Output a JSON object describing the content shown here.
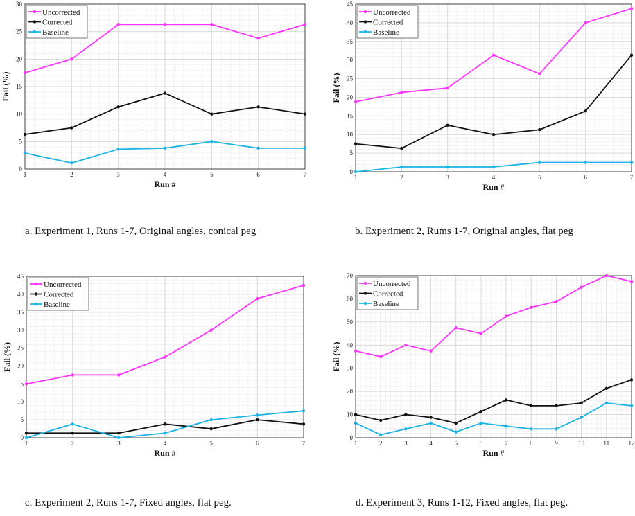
{
  "colors": {
    "Uncorrected": "#ff33ff",
    "Corrected": "#111111",
    "Baseline": "#1ab3e6"
  },
  "chart_data": [
    {
      "type": "line",
      "caption": "a.  Experiment 1, Runs 1-7, Original angles, conical peg",
      "xlabel": "Run #",
      "ylabel": "Fail  (%)",
      "x": [
        1,
        2,
        3,
        4,
        5,
        6,
        7
      ],
      "xlim": [
        1,
        7
      ],
      "ylim": [
        0,
        30
      ],
      "yticks": [
        0,
        5,
        10,
        15,
        20,
        25,
        30
      ],
      "grid": true,
      "legend": "top-left",
      "series": [
        {
          "name": "Uncorrected",
          "values": [
            17.5,
            20,
            26.3,
            26.3,
            26.3,
            23.8,
            26.3
          ]
        },
        {
          "name": "Corrected",
          "values": [
            6.3,
            7.5,
            11.3,
            13.8,
            10,
            11.3,
            10
          ]
        },
        {
          "name": "Baseline",
          "values": [
            2.9,
            1.1,
            3.6,
            3.8,
            5,
            3.8,
            3.8
          ]
        }
      ]
    },
    {
      "type": "line",
      "caption": "b.  Experiment 2, Rums 1-7, Original angles, flat peg",
      "xlabel": "Run #",
      "ylabel": "Fail  (%)",
      "x": [
        1,
        2,
        3,
        4,
        5,
        6,
        7
      ],
      "xlim": [
        1,
        7
      ],
      "ylim": [
        0,
        45
      ],
      "yticks": [
        0,
        5,
        10,
        15,
        20,
        25,
        30,
        35,
        40,
        45
      ],
      "grid": true,
      "legend": "top-left",
      "series": [
        {
          "name": "Uncorrected",
          "values": [
            18.8,
            21.3,
            22.5,
            31.3,
            26.3,
            40,
            43.8
          ]
        },
        {
          "name": "Corrected",
          "values": [
            7.5,
            6.3,
            12.5,
            10,
            11.3,
            16.3,
            31.3
          ]
        },
        {
          "name": "Baseline",
          "values": [
            0,
            1.3,
            1.3,
            1.3,
            2.5,
            2.5,
            2.5
          ]
        }
      ]
    },
    {
      "type": "line",
      "caption": "c.  Experiment 2, Runs 1-7, Fixed angles, flat peg.",
      "xlabel": "Run #",
      "ylabel": "Fail  (%)",
      "x": [
        1,
        2,
        3,
        4,
        5,
        6,
        7
      ],
      "xlim": [
        1,
        7
      ],
      "ylim": [
        0,
        45
      ],
      "yticks": [
        0,
        5,
        10,
        15,
        20,
        25,
        30,
        35,
        40,
        45
      ],
      "grid": true,
      "legend": "top-left",
      "series": [
        {
          "name": "Uncorrected",
          "values": [
            15,
            17.5,
            17.5,
            22.5,
            30,
            38.8,
            42.5
          ]
        },
        {
          "name": "Corrected",
          "values": [
            1.3,
            1.3,
            1.3,
            3.8,
            2.5,
            5,
            3.8
          ]
        },
        {
          "name": "Baseline",
          "values": [
            0,
            3.8,
            0,
            1.3,
            5,
            6.3,
            7.5
          ]
        }
      ]
    },
    {
      "type": "line",
      "caption": "d.  Experiment 3, Runs 1-12, Fixed angles, flat peg.",
      "xlabel": "Run #",
      "ylabel": "Fail  (%)",
      "x": [
        1,
        2,
        3,
        4,
        5,
        6,
        7,
        8,
        9,
        10,
        11,
        12
      ],
      "xlim": [
        1,
        12
      ],
      "ylim": [
        0,
        70
      ],
      "yticks": [
        0,
        10,
        20,
        30,
        40,
        50,
        60,
        70
      ],
      "grid": true,
      "legend": "top-left",
      "series": [
        {
          "name": "Uncorrected",
          "values": [
            37.5,
            35,
            40,
            37.5,
            47.5,
            45,
            52.5,
            56.3,
            58.8,
            65,
            70,
            67.5
          ]
        },
        {
          "name": "Corrected",
          "values": [
            10,
            7.5,
            10,
            8.8,
            6.3,
            11.3,
            16.3,
            13.8,
            13.8,
            15,
            21.3,
            25
          ]
        },
        {
          "name": "Baseline",
          "values": [
            6.3,
            1.3,
            3.8,
            6.3,
            2.5,
            6.3,
            5,
            3.8,
            3.8,
            8.8,
            15,
            13.8
          ]
        }
      ]
    }
  ]
}
